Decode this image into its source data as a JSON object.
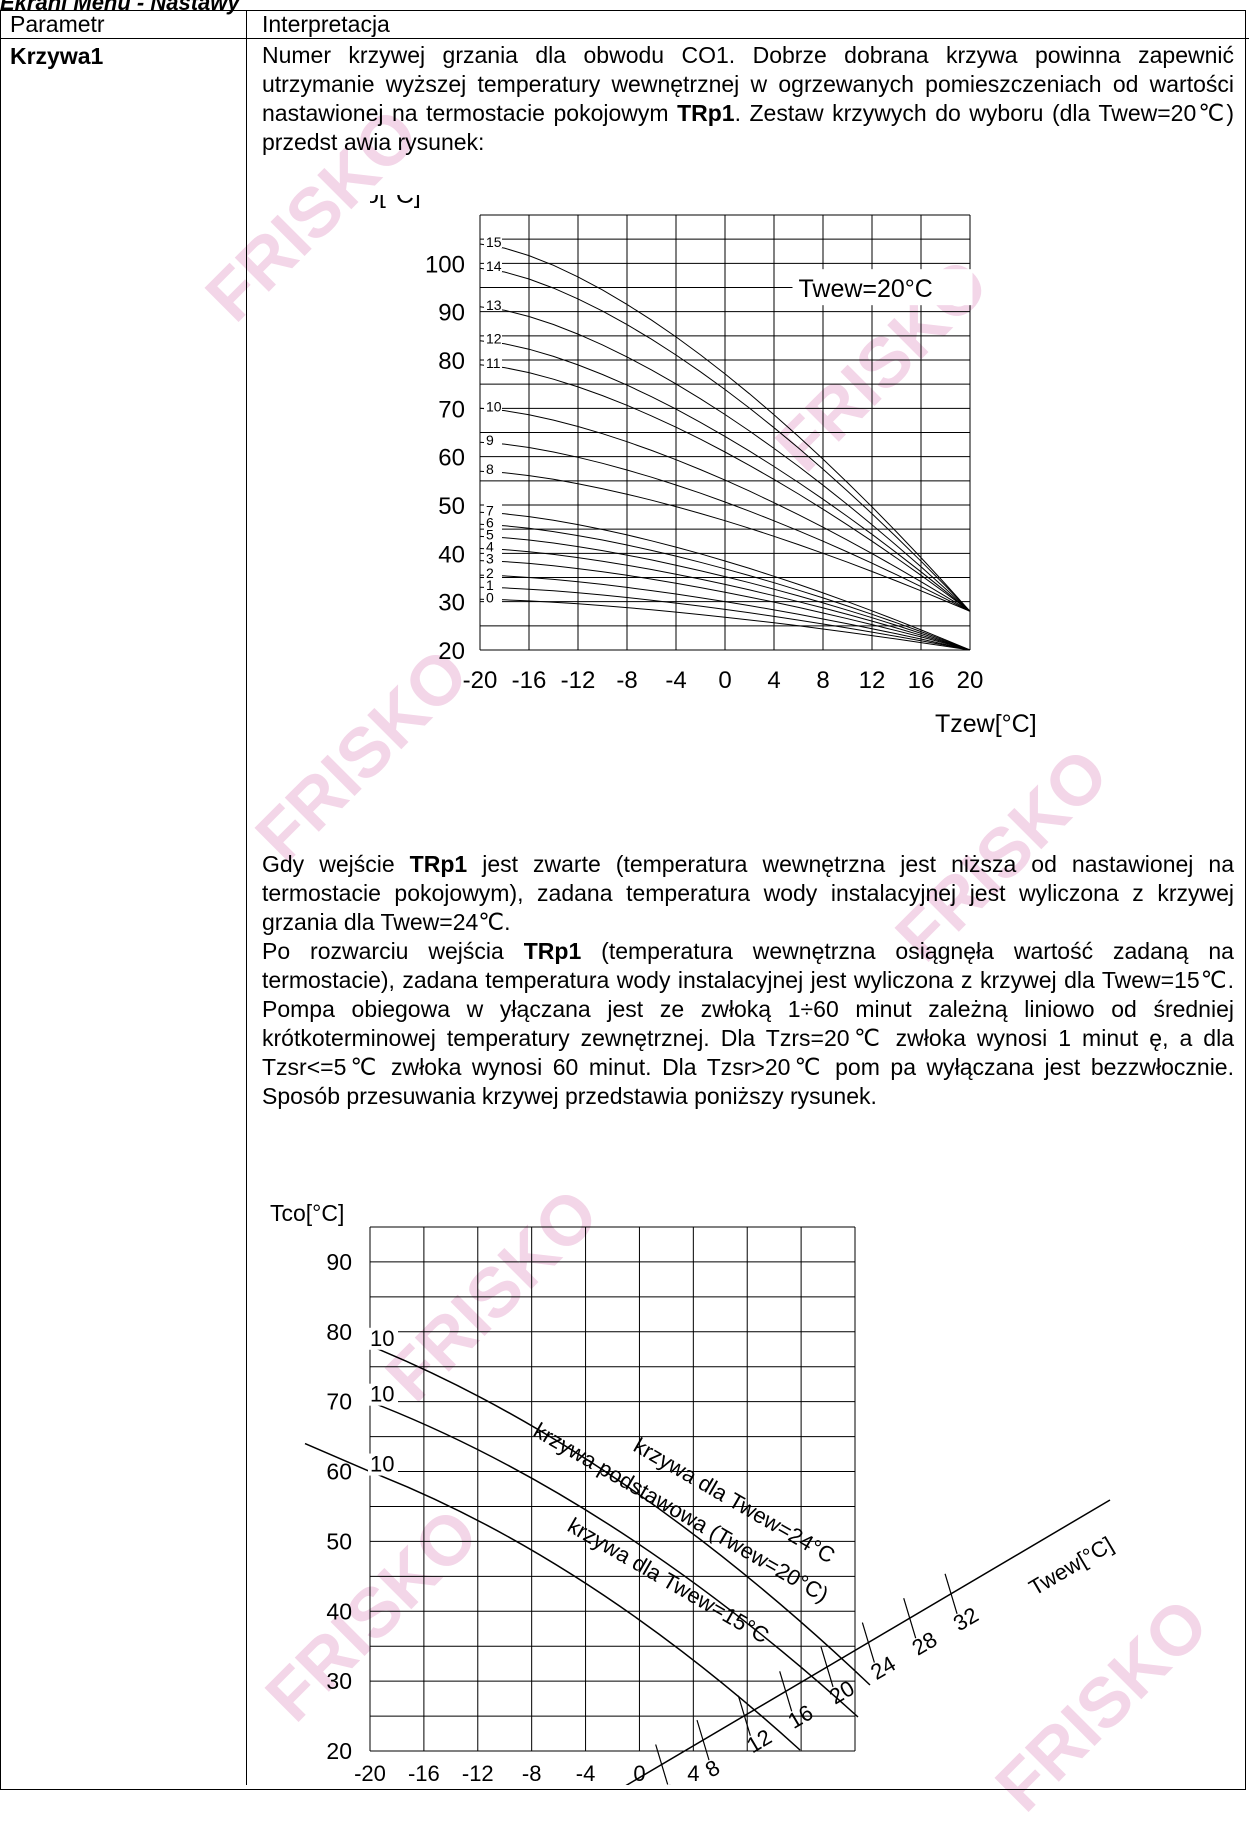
{
  "section_title": "Ekrani Menu - Nastawy",
  "table": {
    "header_param": "Parametr",
    "header_interp": "Interpretacja",
    "param_name": "Krzywa1",
    "para1": [
      {
        "t": "Numer krzywej grzania dla obwodu CO1. Dobrze dobrana krzywa powinna zapewnić utrzymanie wyższej temperatury wewnętrznej w ogrzewanych pomieszczeniach od wartości nastawionej na termostacie pokojowym "
      },
      {
        "t": "TRp1",
        "b": true
      },
      {
        "t": ". Zestaw krzywych do wyboru (dla Twew=20℃) przedst awia rysunek:"
      }
    ],
    "para2": [
      {
        "t": "Gdy wejście "
      },
      {
        "t": "TRp1",
        "b": true
      },
      {
        "t": " jest zwarte (temperatura wewnętrzna jest niższa od nastawionej na termostacie pokojowym), zadana temperatura wody instalacyjnej jest wyliczona z krzywej grzania dla Twew=24℃."
      }
    ],
    "para3": [
      {
        "t": "Po rozwarciu wejścia "
      },
      {
        "t": "TRp1",
        "b": true
      },
      {
        "t": " (temperatura wewnętrzna osiągnęła wartość zadaną na termostacie), zadana temperatura wody instalacyjnej jest wyliczona z krzywej dla Twew=15℃. Pompa obiegowa w yłączana jest ze zwłoką 1÷60 minut zależną liniowo od średniej krótkoterminowej temperatury zewnętrznej. Dla Tzrs=20℃ zwłoka wynosi 1 minut ę, a dla Tzsr<=5℃ zwłoka wynosi 60 minut. Dla Tzsr>20℃ pom pa wyłączana jest bezzwłocznie. Sposób przesuwania krzywej przedstawia poniższy rysunek."
      }
    ]
  },
  "watermark": "FRISKO",
  "chart_data": [
    {
      "type": "line",
      "ylabel": "Tco[°C]",
      "xlabel": "Tzew[°C]",
      "annotation": "Twew=20°C",
      "x_ticks": [
        -20,
        -16,
        -12,
        -8,
        -4,
        0,
        4,
        8,
        12,
        16,
        20
      ],
      "y_ticks": [
        20,
        30,
        40,
        50,
        60,
        70,
        80,
        90,
        100
      ],
      "xlim": [
        -20,
        20
      ],
      "ylim": [
        20,
        110
      ],
      "series": [
        {
          "name": "0",
          "start": 30.5
        },
        {
          "name": "1",
          "start": 33
        },
        {
          "name": "2",
          "start": 35.5
        },
        {
          "name": "3",
          "start": 38.5
        },
        {
          "name": "4",
          "start": 41
        },
        {
          "name": "5",
          "start": 43.5
        },
        {
          "name": "6",
          "start": 46
        },
        {
          "name": "7",
          "start": 48.5
        },
        {
          "name": "8",
          "start": 57
        },
        {
          "name": "9",
          "start": 63
        },
        {
          "name": "10",
          "start": 70
        },
        {
          "name": "11",
          "start": 79
        },
        {
          "name": "12",
          "start": 84
        },
        {
          "name": "13",
          "start": 91
        },
        {
          "name": "14",
          "start": 99
        },
        {
          "name": "15",
          "start": 104
        }
      ],
      "end_value_low": 20,
      "end_value_high": 28
    },
    {
      "type": "line",
      "ylabel": "Tco[°C]",
      "xlabel": "Tzew[°C]",
      "axis2_label": "Twew[°C]",
      "x_ticks": [
        -20,
        -16,
        -12,
        -8,
        -4,
        0,
        4
      ],
      "y_ticks": [
        20,
        30,
        40,
        50,
        60,
        70,
        80,
        90
      ],
      "axis2_ticks": [
        "4",
        "8",
        "12",
        "16",
        "20",
        "24",
        "28",
        "32"
      ],
      "xlim": [
        -20,
        16
      ],
      "ylim": [
        20,
        95
      ],
      "series": [
        {
          "name": "krzywa dla Twew=24°C",
          "curve_label": "10"
        },
        {
          "name": "krzywa podstawowa (Twew=20°C)",
          "curve_label": "10"
        },
        {
          "name": "krzywa dla Twew=15°C",
          "curve_label": "10"
        }
      ]
    }
  ]
}
